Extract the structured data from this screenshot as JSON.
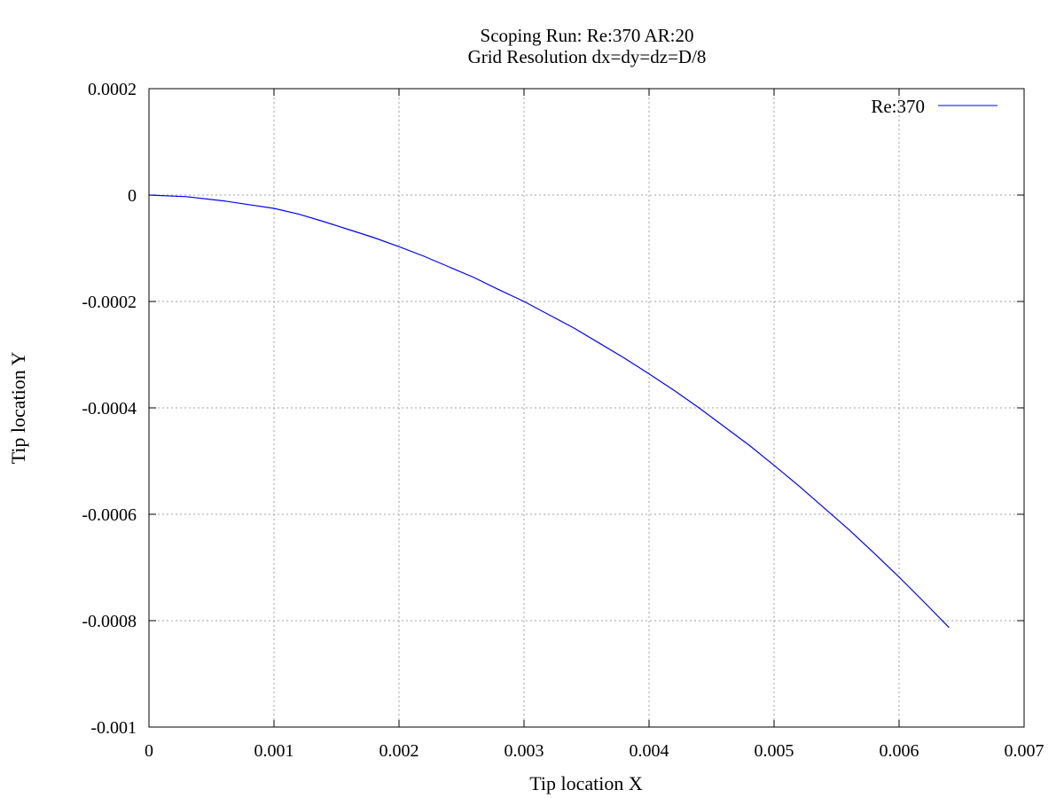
{
  "chart_data": {
    "type": "line",
    "title": "Scoping Run: Re:370  AR:20",
    "subtitle": "Grid Resolution dx=dy=dz=D/8",
    "xlabel": "Tip location X",
    "ylabel": "Tip location Y",
    "xlim": [
      0,
      0.007
    ],
    "ylim": [
      -0.001,
      0.0002
    ],
    "xticks": [
      0,
      0.001,
      0.002,
      0.003,
      0.004,
      0.005,
      0.006,
      0.007
    ],
    "xtick_labels": [
      "0",
      "0.001",
      "0.002",
      "0.003",
      "0.004",
      "0.005",
      "0.006",
      "0.007"
    ],
    "yticks": [
      -0.001,
      -0.0008,
      -0.0006,
      -0.0004,
      -0.0002,
      0,
      0.0002
    ],
    "ytick_labels": [
      "-0.001",
      "-0.0008",
      "-0.0006",
      "-0.0004",
      "-0.0002",
      "0",
      "0.0002"
    ],
    "grid": true,
    "legend_position": "top-right",
    "color": "#0000ff",
    "series": [
      {
        "name": "Re:370",
        "x": [
          0,
          0.0003,
          0.0006,
          0.0008,
          0.001,
          0.0012,
          0.0014,
          0.0016,
          0.0018,
          0.002,
          0.0022,
          0.0024,
          0.0026,
          0.0028,
          0.003,
          0.0032,
          0.0034,
          0.0036,
          0.0038,
          0.004,
          0.0042,
          0.0044,
          0.0046,
          0.0048,
          0.005,
          0.0052,
          0.0054,
          0.0056,
          0.0058,
          0.006,
          0.0062,
          0.0064
        ],
        "y": [
          0,
          -3e-06,
          -1.1e-05,
          -1.8e-05,
          -2.5e-05,
          -3.6e-05,
          -5e-05,
          -6.5e-05,
          -8e-05,
          -9.7e-05,
          -0.000115,
          -0.000135,
          -0.000155,
          -0.000178,
          -0.0002,
          -0.000225,
          -0.00025,
          -0.000278,
          -0.000306,
          -0.000336,
          -0.000367,
          -0.0004,
          -0.000435,
          -0.00047,
          -0.000508,
          -0.000547,
          -0.000588,
          -0.000629,
          -0.000673,
          -0.000718,
          -0.000765,
          -0.000813
        ]
      }
    ]
  }
}
